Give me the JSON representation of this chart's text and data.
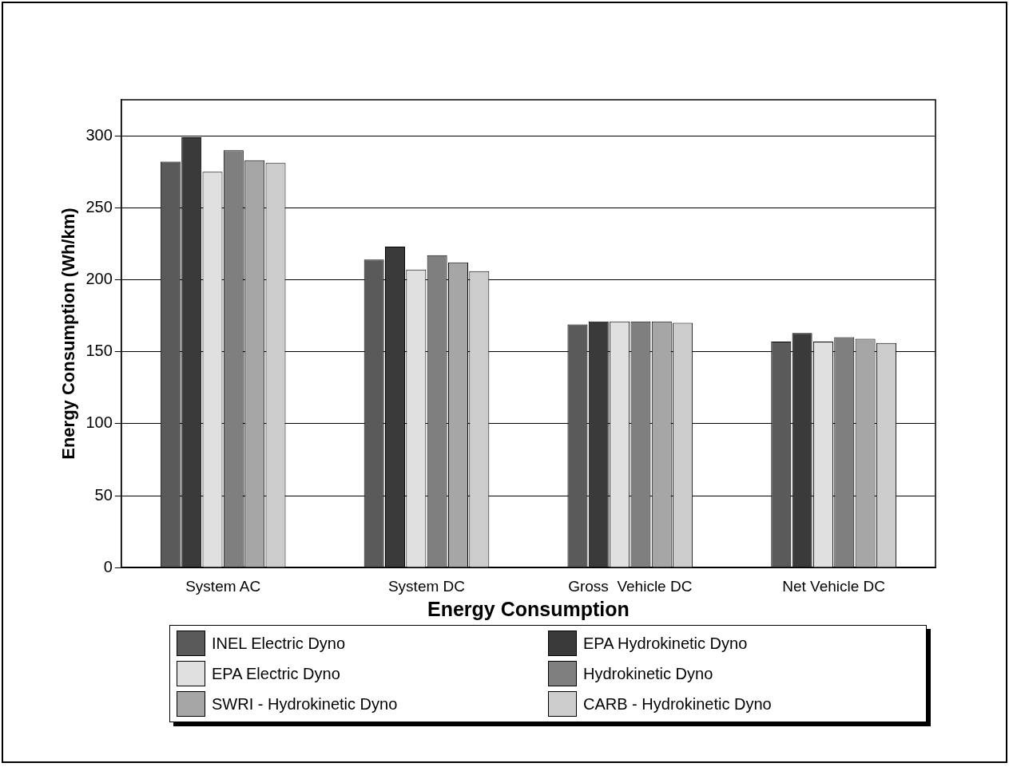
{
  "chart_data": {
    "type": "bar",
    "xlabel": "Energy Consumption",
    "ylabel": "Energy Consumption (Wh/km)",
    "categories": [
      "System AC",
      "System DC",
      "Gross  Vehicle DC",
      "Net Vehicle DC"
    ],
    "series": [
      {
        "name": "INEL Electric Dyno",
        "color": "#5a5a5a",
        "values": [
          282,
          214,
          169,
          157
        ]
      },
      {
        "name": "EPA Hydrokinetic Dyno",
        "color": "#3a3a3a",
        "values": [
          299,
          223,
          171,
          163
        ]
      },
      {
        "name": "EPA Electric Dyno",
        "color": "#e0e0e0",
        "values": [
          275,
          207,
          171,
          157
        ]
      },
      {
        "name": "Hydrokinetic Dyno",
        "color": "#7f7f7f",
        "values": [
          290,
          217,
          171,
          160
        ]
      },
      {
        "name": "SWRI - Hydrokinetic Dyno",
        "color": "#a6a6a6",
        "values": [
          283,
          212,
          171,
          159
        ]
      },
      {
        "name": "CARB - Hydrokinetic Dyno",
        "color": "#cccccc",
        "values": [
          281,
          206,
          170,
          156
        ]
      }
    ],
    "ylim": [
      0,
      325
    ],
    "yticks": [
      0,
      50,
      100,
      150,
      200,
      250,
      300
    ],
    "grid": "y",
    "legend": "bottom"
  }
}
